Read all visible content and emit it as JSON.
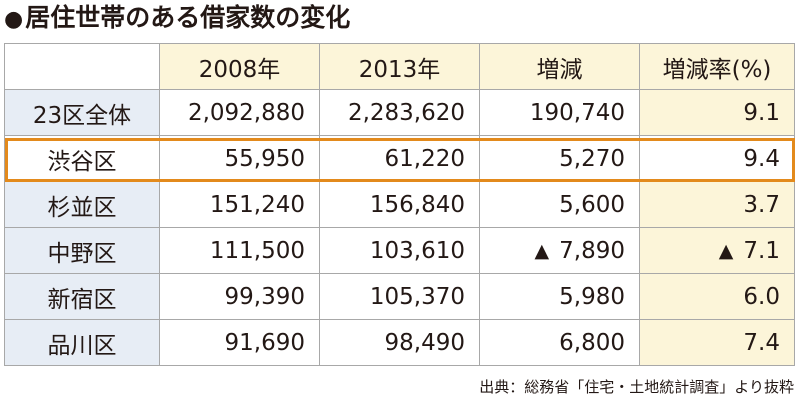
{
  "title": {
    "bullet": "●",
    "text": "居住世帯のある借家数の変化"
  },
  "table": {
    "headers": [
      "",
      "2008年",
      "2013年",
      "増減",
      "増減率(%)"
    ],
    "rows": [
      {
        "name": "23区全体",
        "y2008": "2,092,880",
        "y2013": "2,283,620",
        "change": "190,740",
        "change_prefix": "",
        "rate": "9.1",
        "rate_prefix": ""
      },
      {
        "name": "渋谷区",
        "y2008": "55,950",
        "y2013": "61,220",
        "change": "5,270",
        "change_prefix": "",
        "rate": "9.4",
        "rate_prefix": ""
      },
      {
        "name": "杉並区",
        "y2008": "151,240",
        "y2013": "156,840",
        "change": "5,600",
        "change_prefix": "",
        "rate": "3.7",
        "rate_prefix": ""
      },
      {
        "name": "中野区",
        "y2008": "111,500",
        "y2013": "103,610",
        "change": "7,890",
        "change_prefix": "▲",
        "rate": "7.1",
        "rate_prefix": "▲"
      },
      {
        "name": "新宿区",
        "y2008": "99,390",
        "y2013": "105,370",
        "change": "5,980",
        "change_prefix": "",
        "rate": "6.0",
        "rate_prefix": ""
      },
      {
        "name": "品川区",
        "y2008": "91,690",
        "y2013": "98,490",
        "change": "6,800",
        "change_prefix": "",
        "rate": "7.4",
        "rate_prefix": ""
      }
    ],
    "highlight_color": "#e38a1c",
    "header_bg": "#fcf5d9",
    "row_header_bg": "#e7edf5"
  },
  "source": "出典：総務省「住宅・土地統計調査」より抜粋"
}
